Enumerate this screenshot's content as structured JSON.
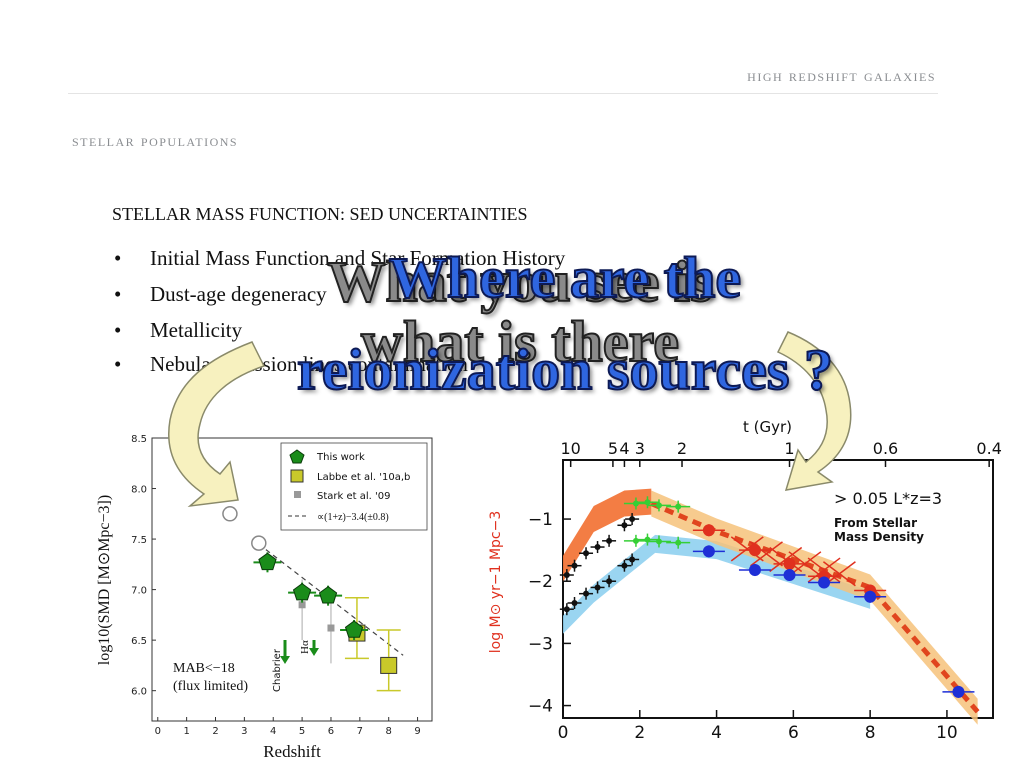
{
  "header": {
    "title": "HIGH REDSHIFT GALAXIES"
  },
  "section": {
    "title": "STELLAR POPULATIONS"
  },
  "subtitle": "STELLAR MASS FUNCTION: SED UNCERTAINTIES",
  "bullets": [
    "Initial Mass Function and Star Formation History",
    "Dust-age degeneracy",
    "Metallicity",
    "Nebular emission lines contamination"
  ],
  "bullet_glyph": "•",
  "overlay": {
    "gray_line1": "What you see is",
    "gray_line2": "what is there",
    "blue_line1": "Where are the",
    "blue_line2": "reionization sources ?"
  },
  "colors": {
    "header": "#8a8d91",
    "overlay_blue": "#2f66e0",
    "overlay_gray": "#8a8a8a",
    "arrow_fill": "#f7f1bf"
  },
  "icons": [
    "curved-arrow-left-icon",
    "curved-arrow-right-icon"
  ],
  "chart_data": [
    {
      "type": "scatter",
      "xlabel": "Redshift",
      "ylabel": "log10(SMD [M⊙Mpc−3])",
      "xlim": [
        -0.2,
        9.5
      ],
      "ylim": [
        5.7,
        8.5
      ],
      "x_ticks": [
        0,
        1,
        2,
        3,
        4,
        5,
        6,
        7,
        8,
        9
      ],
      "y_ticks": [
        "6.0",
        "6.5",
        "7.0",
        "7.5",
        "8.0",
        "8.5"
      ],
      "legend": {
        "placement": "top-right",
        "entries": [
          "This work",
          "Labbe et al. '10a,b",
          "Stark et al. '09",
          "∝(1+z)−3.4(±0.8)"
        ]
      },
      "series": [
        {
          "name": "This work",
          "x": [
            3.8,
            5.0,
            5.9,
            6.8
          ],
          "y": [
            7.27,
            6.97,
            6.94,
            6.6
          ]
        },
        {
          "name": "Labbe et al. '10a,b",
          "x": [
            6.9,
            8.0
          ],
          "y": [
            6.57,
            6.25
          ]
        },
        {
          "name": "Stark et al. '09",
          "x": [
            5.0,
            6.0
          ],
          "y": [
            6.85,
            6.62
          ]
        }
      ],
      "open_circles": {
        "x": [
          2.5,
          3.5
        ],
        "y": [
          7.75,
          7.46
        ]
      },
      "trend_line": {
        "x": [
          3.5,
          8.5
        ],
        "y": [
          7.45,
          6.35
        ]
      },
      "annotations": {
        "imf": "Chabrier",
        "halpha": "Hα",
        "note1": "MAB<−18",
        "note2": "(flux limited)"
      }
    },
    {
      "type": "scatter",
      "xlabel": "",
      "ylabel": "log M⊙ yr−1 Mpc−3",
      "top_label": "t (Gyr)",
      "xlim": [
        0,
        11.2
      ],
      "ylim": [
        -4.2,
        -0.05
      ],
      "x_ticks": [
        0,
        2,
        4,
        6,
        8,
        10
      ],
      "y_ticks": [
        -1,
        -2,
        -3,
        -4
      ],
      "top_ticks": [
        "10",
        "5",
        "4",
        "3",
        "2",
        "1",
        "0.6",
        "0.4"
      ],
      "annotation": "> 0.05 L*z=3",
      "annotation2": "From Stellar",
      "annotation3": "Mass Density",
      "series": [
        {
          "name": "red",
          "x": [
            3.8,
            5.0,
            5.9,
            6.8,
            8.0
          ],
          "y": [
            -1.18,
            -1.5,
            -1.72,
            -1.92,
            -2.15
          ]
        },
        {
          "name": "blue",
          "x": [
            3.8,
            5.0,
            5.9,
            6.8,
            8.0,
            10.3
          ],
          "y": [
            -1.52,
            -1.82,
            -1.9,
            -2.02,
            -2.25,
            -3.78
          ]
        },
        {
          "name": "green",
          "x": [
            1.9,
            2.2,
            2.5,
            3.0
          ],
          "y": [
            -0.75,
            -0.73,
            -0.78,
            -0.8
          ]
        },
        {
          "name": "green-low",
          "x": [
            1.9,
            2.2,
            2.5,
            3.0
          ],
          "y": [
            -1.35,
            -1.33,
            -1.36,
            -1.38
          ]
        },
        {
          "name": "black-high",
          "x": [
            0.1,
            0.3,
            0.6,
            0.9,
            1.2,
            1.6,
            1.8
          ],
          "y": [
            -1.9,
            -1.75,
            -1.55,
            -1.45,
            -1.35,
            -1.1,
            -1.0
          ]
        },
        {
          "name": "black-low",
          "x": [
            0.1,
            0.3,
            0.6,
            0.9,
            1.2,
            1.6,
            1.8
          ],
          "y": [
            -2.45,
            -2.35,
            -2.2,
            -2.1,
            -2.0,
            -1.75,
            -1.65
          ]
        }
      ],
      "stellar_mass_x": [
        4.8,
        5.3,
        5.8,
        6.3,
        6.8,
        7.2
      ],
      "stellar_mass_y": [
        -1.48,
        -1.56,
        -1.65,
        -1.72,
        -1.82,
        -1.88
      ],
      "orange_band": {
        "x": [
          2.3,
          4.0,
          6.0,
          8.0,
          10.8
        ],
        "y": [
          -0.75,
          -1.2,
          -1.65,
          -2.1,
          -4.1
        ]
      },
      "red_band": {
        "x": [
          0.0,
          0.8,
          1.6,
          2.3
        ],
        "y": [
          -1.8,
          -1.0,
          -0.75,
          -0.72
        ]
      },
      "blue_band": {
        "x": [
          0.0,
          0.8,
          1.6,
          2.4,
          4.0,
          6.0,
          8.0
        ],
        "y": [
          -2.7,
          -2.2,
          -1.8,
          -1.4,
          -1.5,
          -1.9,
          -2.3
        ]
      }
    }
  ]
}
